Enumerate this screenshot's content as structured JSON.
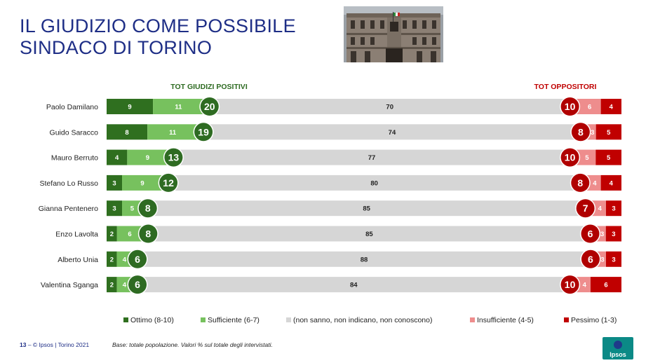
{
  "title": {
    "line1": "IL GIUDIZIO COME POSSIBILE",
    "line2": "SINDACO DI TORINO"
  },
  "headers": {
    "positive": "TOT GIUDIZI POSITIVI",
    "opposers": "TOT OPPOSITORI"
  },
  "colors": {
    "ottimo": "#2f6f1f",
    "sufficiente": "#77c15e",
    "neutral": "#d6d6d6",
    "insufficiente": "#ee8d8d",
    "pessimo": "#c00000",
    "positive_circle": "#2e6b22",
    "negative_circle": "#b00000",
    "title": "#1e2e86",
    "positive_header": "#2e6b22",
    "opposers_header": "#c00000"
  },
  "chart_data": {
    "type": "bar",
    "stacked": true,
    "orientation": "horizontal",
    "categories": [
      "Paolo Damilano",
      "Guido Saracco",
      "Mauro Berruto",
      "Stefano Lo Russo",
      "Gianna Pentenero",
      "Enzo Lavolta",
      "Alberto Unia",
      "Valentina Sganga"
    ],
    "series": [
      {
        "name": "Ottimo (8-10)",
        "values": [
          9,
          8,
          4,
          3,
          3,
          2,
          2,
          2
        ]
      },
      {
        "name": "Sufficiente (6-7)",
        "values": [
          11,
          11,
          9,
          9,
          5,
          6,
          4,
          4
        ]
      },
      {
        "name": "(non sanno, non indicano, non conoscono)",
        "values": [
          70,
          74,
          77,
          80,
          85,
          85,
          88,
          84
        ]
      },
      {
        "name": "Insufficiente (4-5)",
        "values": [
          6,
          3,
          5,
          4,
          4,
          3,
          3,
          4
        ]
      },
      {
        "name": "Pessimo (1-3)",
        "values": [
          4,
          5,
          5,
          4,
          3,
          3,
          3,
          6
        ]
      }
    ],
    "tot_positivi": [
      20,
      19,
      13,
      12,
      8,
      8,
      6,
      6
    ],
    "tot_oppositori": [
      10,
      8,
      10,
      8,
      7,
      6,
      6,
      10
    ],
    "legend_position": "bottom"
  },
  "footer": {
    "page": "13",
    "text": " –  © Ipsos | Torino 2021",
    "base": "Base: totale popolazione. Valori % sul totale degli intervistati."
  },
  "logo_text": "Ipsos"
}
